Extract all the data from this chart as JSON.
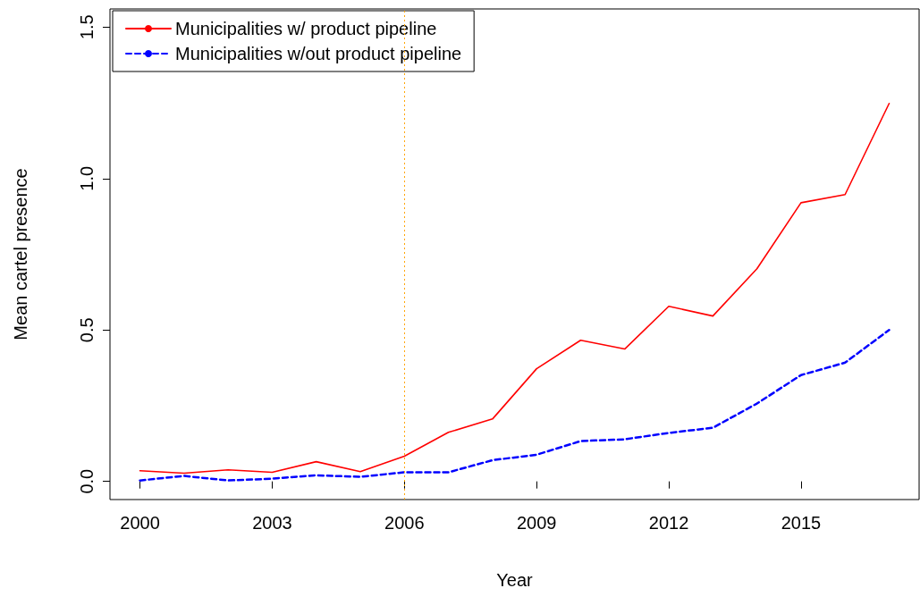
{
  "chart_data": {
    "type": "line",
    "xlabel": "Year",
    "ylabel": "Mean cartel presence",
    "x": [
      2000,
      2001,
      2002,
      2003,
      2004,
      2005,
      2006,
      2007,
      2008,
      2009,
      2010,
      2011,
      2012,
      2013,
      2014,
      2015,
      2016,
      2017
    ],
    "series": [
      {
        "name": "Municipalities w/ product pipeline",
        "color": "#ff0000",
        "line_style": "solid",
        "values": [
          0.035,
          0.027,
          0.038,
          0.03,
          0.065,
          0.032,
          0.083,
          0.162,
          0.206,
          0.372,
          0.466,
          0.437,
          0.578,
          0.546,
          0.702,
          0.92,
          0.947,
          1.248
        ]
      },
      {
        "name": "Municipalities w/out product pipeline",
        "color": "#0000ff",
        "line_style": "dashed",
        "values": [
          0.003,
          0.018,
          0.003,
          0.009,
          0.02,
          0.015,
          0.03,
          0.03,
          0.07,
          0.088,
          0.133,
          0.139,
          0.16,
          0.177,
          0.257,
          0.351,
          0.392,
          0.5
        ]
      }
    ],
    "xlim": [
      1999.32,
      2017.68
    ],
    "xticks": [
      2000,
      2003,
      2006,
      2009,
      2012,
      2015
    ],
    "ylim": [
      -0.06,
      1.56
    ],
    "yticks": [
      {
        "value": 0,
        "label": "0.0"
      },
      {
        "value": 0.5,
        "label": "0.5"
      },
      {
        "value": 1,
        "label": "1.0"
      },
      {
        "value": 1.5,
        "label": "1.5"
      }
    ],
    "ref_lines": [
      {
        "axis": "x",
        "value": 2006,
        "color": "#ffa500",
        "line_style": "dotted"
      }
    ],
    "grid": false,
    "legend": "top left",
    "marker": "none"
  }
}
